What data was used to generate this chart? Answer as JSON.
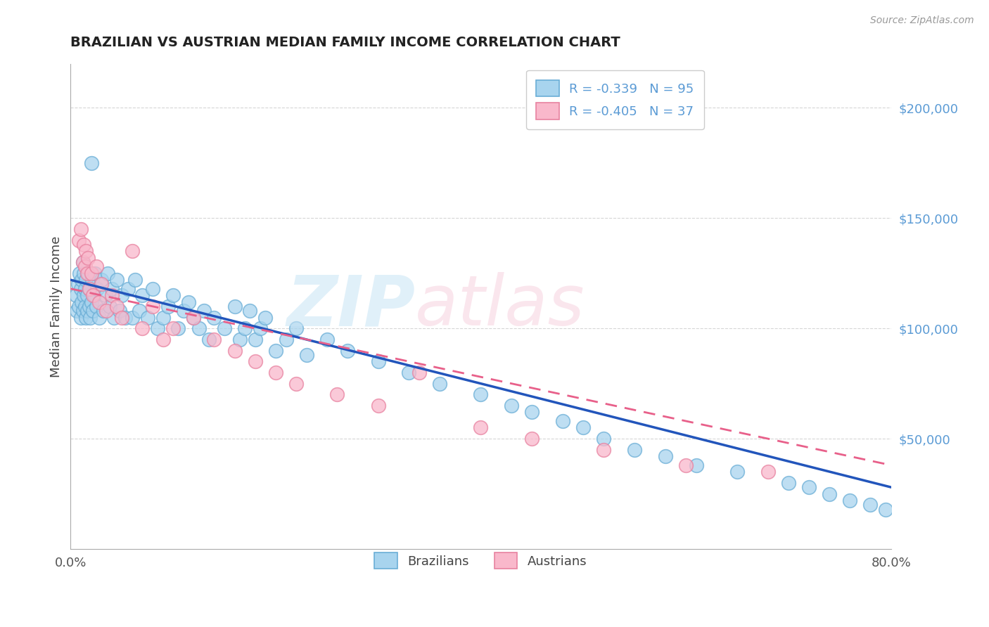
{
  "title": "BRAZILIAN VS AUSTRIAN MEDIAN FAMILY INCOME CORRELATION CHART",
  "source": "Source: ZipAtlas.com",
  "ylabel": "Median Family Income",
  "xlim": [
    0.0,
    0.8
  ],
  "ylim": [
    0,
    220000
  ],
  "brazil_R": -0.339,
  "brazil_N": 95,
  "austria_R": -0.405,
  "austria_N": 37,
  "brazil_color_fill": "#A8D4EE",
  "brazil_color_edge": "#6AAED6",
  "austria_color_fill": "#F9B8CB",
  "austria_color_edge": "#E882A0",
  "brazil_line_color": "#2255BB",
  "austria_line_color": "#E8608A",
  "bg_color": "#FFFFFF",
  "grid_color": "#CCCCCC",
  "ytick_color": "#5B9BD5",
  "brazil_line_y0": 122000,
  "brazil_line_y1": 28000,
  "austria_line_y0": 118000,
  "austria_line_y1": 38000,
  "brazil_x": [
    0.005,
    0.006,
    0.007,
    0.008,
    0.009,
    0.01,
    0.01,
    0.011,
    0.011,
    0.012,
    0.012,
    0.013,
    0.013,
    0.014,
    0.014,
    0.015,
    0.015,
    0.016,
    0.016,
    0.017,
    0.018,
    0.018,
    0.019,
    0.02,
    0.02,
    0.021,
    0.022,
    0.023,
    0.024,
    0.025,
    0.026,
    0.028,
    0.03,
    0.032,
    0.034,
    0.036,
    0.038,
    0.04,
    0.042,
    0.045,
    0.048,
    0.05,
    0.053,
    0.056,
    0.06,
    0.063,
    0.067,
    0.07,
    0.075,
    0.08,
    0.085,
    0.09,
    0.095,
    0.1,
    0.105,
    0.11,
    0.115,
    0.12,
    0.125,
    0.13,
    0.135,
    0.14,
    0.15,
    0.16,
    0.165,
    0.17,
    0.175,
    0.18,
    0.185,
    0.19,
    0.2,
    0.21,
    0.22,
    0.23,
    0.25,
    0.27,
    0.3,
    0.33,
    0.36,
    0.4,
    0.43,
    0.45,
    0.48,
    0.5,
    0.52,
    0.55,
    0.58,
    0.61,
    0.65,
    0.7,
    0.72,
    0.74,
    0.76,
    0.78,
    0.795
  ],
  "brazil_y": [
    115000,
    108000,
    120000,
    110000,
    125000,
    105000,
    118000,
    112000,
    122000,
    108000,
    130000,
    115000,
    125000,
    110000,
    118000,
    105000,
    122000,
    108000,
    115000,
    125000,
    110000,
    118000,
    105000,
    175000,
    112000,
    122000,
    108000,
    115000,
    125000,
    110000,
    118000,
    105000,
    122000,
    108000,
    115000,
    125000,
    110000,
    118000,
    105000,
    122000,
    108000,
    115000,
    105000,
    118000,
    105000,
    122000,
    108000,
    115000,
    105000,
    118000,
    100000,
    105000,
    110000,
    115000,
    100000,
    108000,
    112000,
    105000,
    100000,
    108000,
    95000,
    105000,
    100000,
    110000,
    95000,
    100000,
    108000,
    95000,
    100000,
    105000,
    90000,
    95000,
    100000,
    88000,
    95000,
    90000,
    85000,
    80000,
    75000,
    70000,
    65000,
    62000,
    58000,
    55000,
    50000,
    45000,
    42000,
    38000,
    35000,
    30000,
    28000,
    25000,
    22000,
    20000,
    18000
  ],
  "austria_x": [
    0.008,
    0.01,
    0.012,
    0.013,
    0.014,
    0.015,
    0.016,
    0.017,
    0.018,
    0.02,
    0.022,
    0.025,
    0.028,
    0.03,
    0.035,
    0.04,
    0.045,
    0.05,
    0.06,
    0.07,
    0.08,
    0.09,
    0.1,
    0.12,
    0.14,
    0.16,
    0.18,
    0.2,
    0.22,
    0.26,
    0.3,
    0.34,
    0.4,
    0.45,
    0.52,
    0.6,
    0.68
  ],
  "austria_y": [
    140000,
    145000,
    130000,
    138000,
    128000,
    135000,
    125000,
    132000,
    118000,
    125000,
    115000,
    128000,
    112000,
    120000,
    108000,
    115000,
    110000,
    105000,
    135000,
    100000,
    110000,
    95000,
    100000,
    105000,
    95000,
    90000,
    85000,
    80000,
    75000,
    70000,
    65000,
    80000,
    55000,
    50000,
    45000,
    38000,
    35000
  ]
}
